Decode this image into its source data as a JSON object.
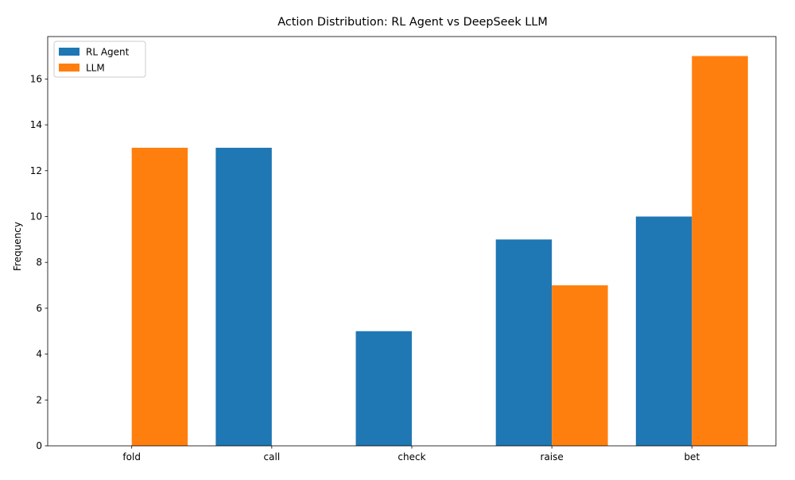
{
  "chart_data": {
    "type": "bar",
    "title": "Action Distribution: RL Agent vs DeepSeek LLM",
    "xlabel": "",
    "ylabel": "Frequency",
    "categories": [
      "fold",
      "call",
      "check",
      "raise",
      "bet"
    ],
    "series": [
      {
        "name": "RL Agent",
        "color": "#1f77b4",
        "values": [
          0,
          13,
          5,
          9,
          10
        ]
      },
      {
        "name": "LLM",
        "color": "#ff7f0e",
        "values": [
          13,
          0,
          0,
          7,
          17
        ]
      }
    ],
    "ylim": [
      0,
      17.85
    ],
    "yticks": [
      0,
      2,
      4,
      6,
      8,
      10,
      12,
      14,
      16
    ],
    "grid": false,
    "legend_position": "top-left"
  }
}
